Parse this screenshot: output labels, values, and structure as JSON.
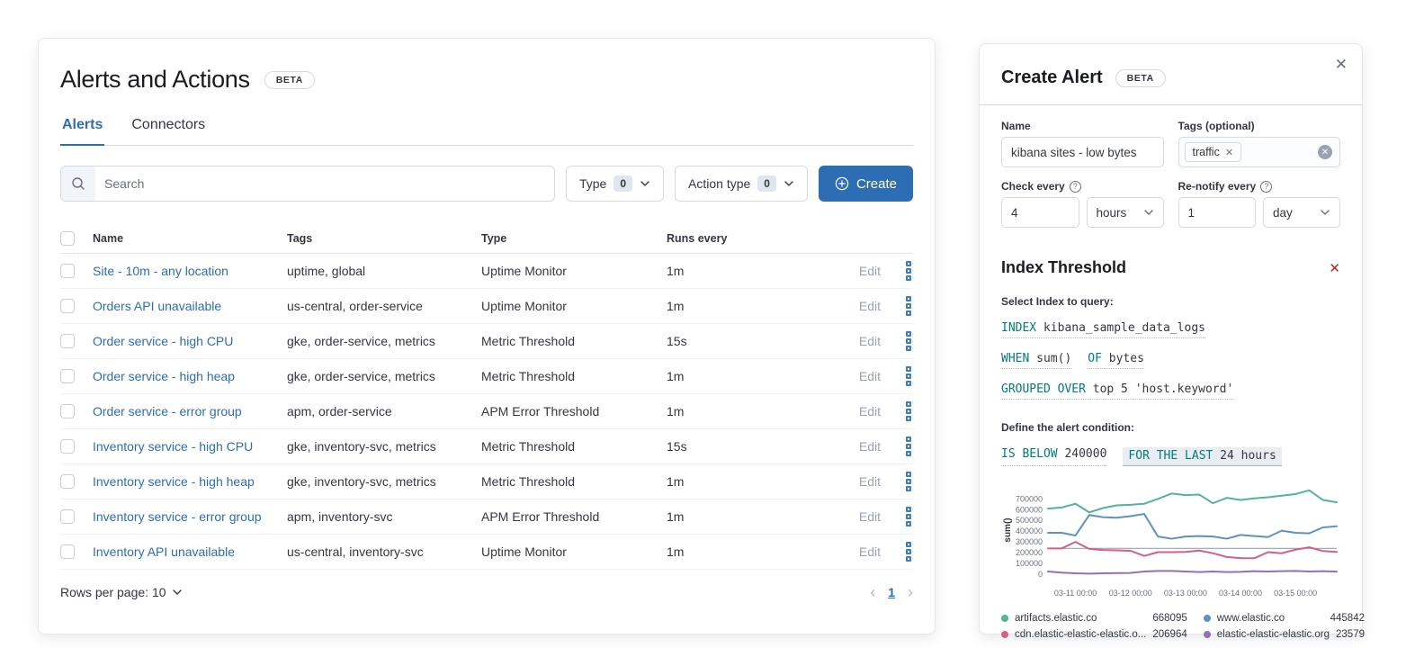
{
  "accent": "#2d6db4",
  "left_panel": {
    "title": "Alerts and Actions",
    "beta": "BETA",
    "tabs": [
      {
        "label": "Alerts",
        "active": true
      },
      {
        "label": "Connectors",
        "active": false
      }
    ],
    "search_placeholder": "Search",
    "filters": [
      {
        "label": "Type",
        "count": "0"
      },
      {
        "label": "Action type",
        "count": "0"
      }
    ],
    "create_label": "Create",
    "table": {
      "headers": [
        "Name",
        "Tags",
        "Type",
        "Runs every"
      ],
      "edit_label": "Edit",
      "rows": [
        {
          "name": "Site - 10m - any location",
          "tags": "uptime, global",
          "type": "Uptime Monitor",
          "runs": "1m"
        },
        {
          "name": "Orders API unavailable",
          "tags": "us-central, order-service",
          "type": "Uptime Monitor",
          "runs": "1m"
        },
        {
          "name": "Order service - high CPU",
          "tags": "gke, order-service, metrics",
          "type": "Metric Threshold",
          "runs": "15s"
        },
        {
          "name": "Order service - high heap",
          "tags": "gke, order-service, metrics",
          "type": "Metric Threshold",
          "runs": "1m"
        },
        {
          "name": "Order service - error group",
          "tags": "apm, order-service",
          "type": "APM Error Threshold",
          "runs": "1m"
        },
        {
          "name": "Inventory service - high CPU",
          "tags": "gke, inventory-svc, metrics",
          "type": "Metric Threshold",
          "runs": "15s"
        },
        {
          "name": "Inventory service - high heap",
          "tags": "gke, inventory-svc, metrics",
          "type": "Metric Threshold",
          "runs": "1m"
        },
        {
          "name": "Inventory service - error group",
          "tags": "apm, inventory-svc",
          "type": "APM Error Threshold",
          "runs": "1m"
        },
        {
          "name": "Inventory API unavailable",
          "tags": "us-central, inventory-svc",
          "type": "Uptime Monitor",
          "runs": "1m"
        }
      ]
    },
    "footer": {
      "rows_per_page": "Rows per page: 10",
      "page": "1",
      "prev": "‹",
      "next": "›"
    }
  },
  "flyout": {
    "title": "Create Alert",
    "beta": "BETA",
    "close": "✕",
    "name_label": "Name",
    "name_value": "kibana sites - low bytes",
    "tags_label": "Tags (optional)",
    "tag_pill": "traffic",
    "check_label": "Check every",
    "check_value": "4",
    "check_unit": "hours",
    "renotify_label": "Re-notify every",
    "renotify_value": "1",
    "renotify_unit": "day",
    "section_title": "Index Threshold",
    "select_index_label": "Select Index to query:",
    "query_clauses": [
      [
        {
          "kw": "INDEX",
          "val": "kibana_sample_data_logs"
        }
      ],
      [
        {
          "kw": "WHEN",
          "val": "sum()"
        },
        {
          "kw": "OF",
          "val": "bytes"
        }
      ],
      [
        {
          "kw": "GROUPED OVER",
          "val": "top 5 'host.keyword'"
        }
      ]
    ],
    "condition_label": "Define the alert condition:",
    "condition_clauses": [
      {
        "kw": "IS BELOW",
        "val": "240000",
        "highlight": false
      },
      {
        "kw": "FOR THE LAST",
        "val": "24 hours",
        "highlight": true
      }
    ]
  },
  "chart_data": {
    "type": "line",
    "ylabel": "sum()",
    "ylim": [
      0,
      820000
    ],
    "y_ticks": [
      0,
      100000,
      200000,
      300000,
      400000,
      500000,
      600000,
      700000
    ],
    "threshold": 240000,
    "threshold_color": "#9aa3af",
    "x_tick_labels": [
      "03-11 00:00",
      "03-12 00:00",
      "03-13 00:00",
      "03-14 00:00",
      "03-15 00:00"
    ],
    "x_tick_indices": [
      2,
      6,
      10,
      14,
      18
    ],
    "grid": false,
    "legend_position": "bottom",
    "series": [
      {
        "name": "artifacts.elastic.co",
        "color": "#54b399",
        "values": [
          610000,
          620000,
          655000,
          575000,
          615000,
          640000,
          645000,
          655000,
          700000,
          750000,
          735000,
          740000,
          660000,
          710000,
          690000,
          705000,
          715000,
          730000,
          745000,
          780000,
          690000,
          668095
        ]
      },
      {
        "name": "www.elastic.co",
        "color": "#6092c0",
        "values": [
          385000,
          385000,
          360000,
          550000,
          530000,
          525000,
          540000,
          560000,
          350000,
          330000,
          350000,
          355000,
          350000,
          330000,
          365000,
          355000,
          345000,
          405000,
          385000,
          380000,
          435000,
          445842
        ]
      },
      {
        "name": "cdn.elastic-elastic-elastic.o...",
        "color": "#d36086",
        "values": [
          240000,
          240000,
          300000,
          235000,
          225000,
          222000,
          218000,
          170000,
          205000,
          205000,
          207000,
          220000,
          195000,
          160000,
          150000,
          148000,
          205000,
          195000,
          228000,
          250000,
          215000,
          206964
        ]
      },
      {
        "name": "elastic-elastic-elastic.org",
        "color": "#9170b8",
        "values": [
          25000,
          15000,
          8000,
          5000,
          8000,
          10000,
          12000,
          25000,
          30000,
          30000,
          25000,
          20000,
          25000,
          20000,
          22000,
          28000,
          25000,
          28000,
          30000,
          25000,
          28000,
          23579
        ]
      }
    ],
    "legend": [
      {
        "name": "artifacts.elastic.co",
        "value": "668095",
        "color": "#54b399"
      },
      {
        "name": "www.elastic.co",
        "value": "445842",
        "color": "#6092c0"
      },
      {
        "name": "cdn.elastic-elastic-elastic.o...",
        "value": "206964",
        "color": "#d36086"
      },
      {
        "name": "elastic-elastic-elastic.org",
        "value": "23579",
        "color": "#9170b8"
      }
    ]
  }
}
